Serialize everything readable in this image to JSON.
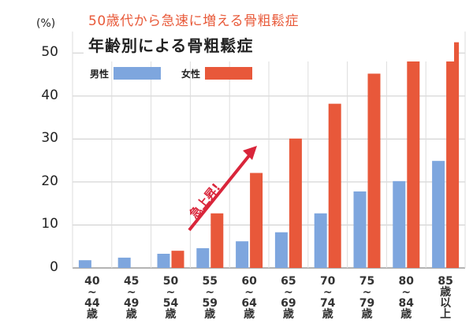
{
  "chart_data": {
    "type": "bar",
    "subtitle": "50歳代から急速に増える骨粗鬆症",
    "title": "年齢別による骨粗鬆症",
    "ylabel": "(%)",
    "ylim": [
      0,
      55
    ],
    "yticks": [
      "0",
      "10",
      "20",
      "30",
      "40",
      "50"
    ],
    "grid": true,
    "legend_placement": "top-left",
    "categories": [
      "40\n~\n44\n歳",
      "45\n~\n49\n歳",
      "50\n~\n54\n歳",
      "55\n~\n59\n歳",
      "60\n~\n64\n歳",
      "65\n~\n69\n歳",
      "70\n~\n74\n歳",
      "75\n~\n79\n歳",
      "80\n~\n84\n歳",
      "85\n歳\n以\n上"
    ],
    "series": [
      {
        "name": "男性",
        "color": "#7ea6de",
        "values": [
          1.8,
          2.4,
          3.3,
          4.6,
          6.2,
          8.3,
          12.7,
          17.8,
          20.2,
          24.9
        ]
      },
      {
        "name": "女性",
        "color": "#e8583a",
        "values": [
          null,
          null,
          4.0,
          12.7,
          22.1,
          30.1,
          38.2,
          45.2,
          50.4,
          52.5
        ]
      }
    ],
    "annotation": {
      "text": "急上昇!",
      "color": "#d9253a"
    }
  }
}
